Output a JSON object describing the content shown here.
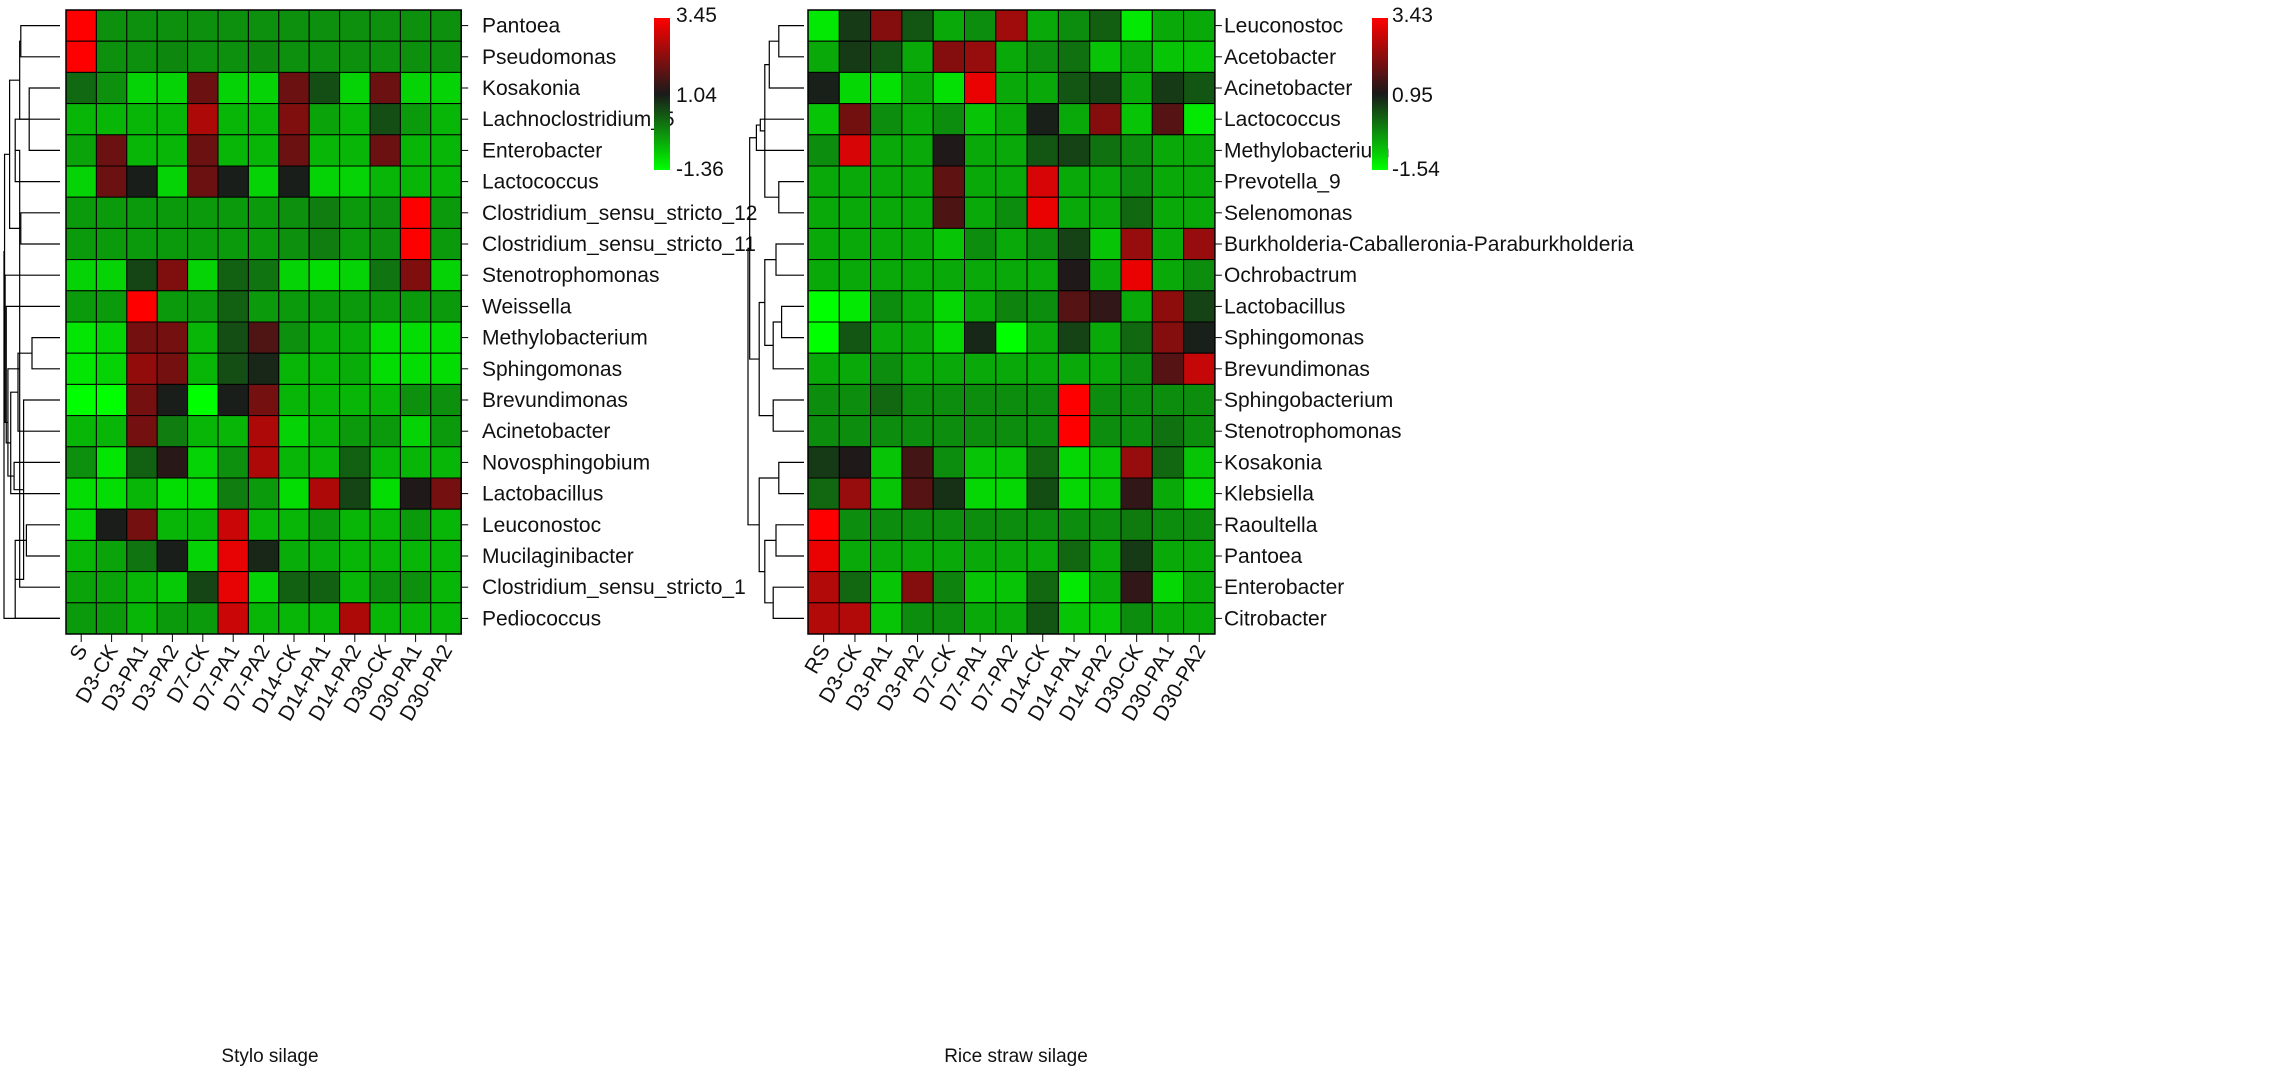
{
  "chart_data": [
    {
      "type": "heatmap",
      "title": "Stylo silage",
      "columns": [
        "S",
        "D3-CK",
        "D3-PA1",
        "D3-PA2",
        "D7-CK",
        "D7-PA1",
        "D7-PA2",
        "D14-CK",
        "D14-PA1",
        "D14-PA2",
        "D30-CK",
        "D30-PA1",
        "D30-PA2"
      ],
      "rows": [
        "Pantoea",
        "Pseudomonas",
        "Kosakonia",
        "Lachnoclostridium_5",
        "Enterobacter",
        "Lactococcus",
        "Clostridium_sensu_stricto_12",
        "Clostridium_sensu_stricto_11",
        "Stenotrophomonas",
        "Weissella",
        "Methylobacterium",
        "Sphingomonas",
        "Brevundimonas",
        "Acinetobacter",
        "Novosphingobium",
        "Lactobacillus",
        "Leuconostoc",
        "Mucilaginibacter",
        "Clostridium_sensu_stricto_1",
        "Pediococcus"
      ],
      "color_scale": {
        "low": -1.36,
        "mid": 1.04,
        "high": 3.45,
        "low_label": "-1.36",
        "mid_label": "1.04",
        "high_label": "3.45",
        "low_color": "#00ff00",
        "mid_color": "#1a1a1a",
        "high_color": "#ff0000"
      },
      "values": [
        [
          3.45,
          -0.2,
          -0.2,
          -0.2,
          -0.2,
          -0.2,
          -0.2,
          -0.2,
          -0.2,
          -0.2,
          -0.2,
          -0.2,
          -0.2
        ],
        [
          3.45,
          -0.2,
          -0.2,
          -0.1,
          -0.2,
          -0.2,
          -0.1,
          -0.2,
          -0.2,
          -0.2,
          -0.2,
          -0.2,
          -0.2
        ],
        [
          0.2,
          -0.2,
          -0.9,
          -0.9,
          1.9,
          -0.9,
          -0.9,
          1.9,
          0.5,
          -0.9,
          1.9,
          -0.9,
          -0.9
        ],
        [
          -0.6,
          -0.6,
          -0.6,
          -0.6,
          2.6,
          -0.6,
          -0.6,
          2.1,
          -0.4,
          -0.6,
          0.5,
          -0.3,
          -0.6
        ],
        [
          -0.4,
          1.9,
          -0.6,
          -0.6,
          1.9,
          -0.6,
          -0.6,
          1.9,
          -0.6,
          -0.6,
          1.9,
          -0.6,
          -0.6
        ],
        [
          -0.9,
          1.9,
          1.0,
          -0.9,
          1.9,
          1.0,
          -0.9,
          1.0,
          -0.9,
          -0.9,
          -0.6,
          -0.6,
          -0.6
        ],
        [
          -0.3,
          -0.3,
          -0.3,
          -0.3,
          -0.3,
          -0.3,
          -0.3,
          -0.2,
          0.0,
          -0.3,
          -0.2,
          3.45,
          -0.3
        ],
        [
          -0.3,
          -0.3,
          -0.3,
          -0.3,
          -0.3,
          -0.3,
          -0.3,
          -0.2,
          0.0,
          -0.3,
          -0.2,
          3.45,
          -0.3
        ],
        [
          -0.9,
          -0.9,
          0.6,
          2.1,
          -0.9,
          0.3,
          0.1,
          -0.9,
          -1.0,
          -0.9,
          0.1,
          2.1,
          -0.9
        ],
        [
          -0.3,
          -0.3,
          3.45,
          -0.3,
          -0.3,
          0.3,
          -0.3,
          -0.3,
          -0.3,
          -0.3,
          -0.3,
          -0.3,
          -0.3
        ],
        [
          -1.1,
          -0.9,
          2.0,
          2.0,
          -0.6,
          0.5,
          1.6,
          -0.2,
          -0.5,
          -0.5,
          -1.0,
          -1.0,
          -1.0
        ],
        [
          -1.1,
          -0.9,
          2.3,
          2.0,
          -0.6,
          0.5,
          0.9,
          -0.6,
          -0.6,
          -0.5,
          -1.0,
          -1.0,
          -1.0
        ],
        [
          -1.36,
          -1.36,
          2.0,
          1.0,
          -1.36,
          1.0,
          2.0,
          -0.6,
          -0.6,
          -0.6,
          -0.6,
          -0.2,
          -0.2
        ],
        [
          -0.6,
          -0.6,
          2.0,
          0.0,
          -0.6,
          -0.6,
          2.6,
          -0.9,
          -0.6,
          -0.3,
          -0.3,
          -0.9,
          -0.3
        ],
        [
          -0.2,
          -1.1,
          0.3,
          1.2,
          -0.9,
          -0.2,
          2.6,
          -0.6,
          -0.6,
          0.3,
          -0.6,
          -0.6,
          -0.6
        ],
        [
          -1.0,
          -1.0,
          -0.6,
          -1.0,
          -1.0,
          0.0,
          -0.3,
          -1.0,
          2.6,
          0.6,
          -1.0,
          1.1,
          2.0
        ],
        [
          -0.9,
          1.0,
          2.0,
          -0.6,
          -0.6,
          2.9,
          -0.6,
          -0.6,
          -0.3,
          -0.6,
          -0.6,
          -0.3,
          -0.6
        ],
        [
          -0.6,
          -0.4,
          0.1,
          1.0,
          -0.9,
          3.2,
          0.9,
          -0.5,
          -0.5,
          -0.6,
          -0.6,
          -0.6,
          -0.6
        ],
        [
          -0.4,
          -0.4,
          -0.6,
          -0.8,
          0.6,
          3.2,
          -0.9,
          0.3,
          0.3,
          -0.6,
          -0.2,
          -0.2,
          -0.6
        ],
        [
          -0.3,
          -0.3,
          -0.6,
          -0.3,
          -0.3,
          2.9,
          -0.6,
          -0.6,
          -0.6,
          2.6,
          -0.6,
          -0.6,
          -0.6
        ]
      ],
      "dendrogram": {
        "height": 1,
        "merges": [
          [
            0,
            1,
            0.7
          ],
          [
            6,
            7,
            0.7
          ],
          [
            2,
            4,
            0.55
          ],
          [
            20,
            3,
            0.72
          ],
          [
            22,
            5,
            0.8
          ],
          [
            16,
            17,
            0.6
          ],
          [
            24,
            18,
            0.72
          ],
          [
            25,
            19,
            0.8
          ],
          [
            10,
            11,
            0.5
          ],
          [
            27,
            12,
            0.65
          ],
          [
            28,
            13,
            0.75
          ],
          [
            29,
            14,
            0.82
          ],
          [
            30,
            15,
            0.88
          ],
          [
            31,
            26,
            0.93
          ],
          [
            32,
            9,
            0.96
          ],
          [
            33,
            8,
            0.98
          ],
          [
            21,
            23,
            0.9
          ],
          [
            35,
            36,
            0.99
          ],
          [
            19,
            37,
            1.0
          ]
        ]
      }
    },
    {
      "type": "heatmap",
      "title": "Rice straw silage",
      "columns": [
        "RS",
        "D3-CK",
        "D3-PA1",
        "D3-PA2",
        "D7-CK",
        "D7-PA1",
        "D7-PA2",
        "D14-CK",
        "D14-PA1",
        "D14-PA2",
        "D30-CK",
        "D30-PA1",
        "D30-PA2"
      ],
      "rows": [
        "Leuconostoc",
        "Acetobacter",
        "Acinetobacter",
        "Lactococcus",
        "Methylobacterium",
        "Prevotella_9",
        "Selenomonas",
        "Burkholderia-Caballeronia-Paraburkholderia",
        "Ochrobactrum",
        "Lactobacillus",
        "Sphingomonas",
        "Brevundimonas",
        "Sphingobacterium",
        "Stenotrophomonas",
        "Kosakonia",
        "Klebsiella",
        "Raoultella",
        "Pantoea",
        "Enterobacter",
        "Citrobacter"
      ],
      "color_scale": {
        "low": -1.54,
        "mid": 0.95,
        "high": 3.43,
        "low_label": "-1.54",
        "mid_label": "0.95",
        "high_label": "3.43",
        "low_color": "#00ff00",
        "mid_color": "#1a1a1a",
        "high_color": "#ff0000"
      },
      "values": [
        [
          -1.3,
          0.6,
          2.1,
          0.3,
          -0.6,
          -0.3,
          2.4,
          -0.6,
          -0.3,
          0.2,
          -1.3,
          -0.6,
          -0.6
        ],
        [
          -0.6,
          0.6,
          0.3,
          -0.6,
          2.1,
          2.3,
          -0.6,
          -0.3,
          0.0,
          -0.9,
          -0.6,
          -0.9,
          -0.9
        ],
        [
          0.9,
          -1.1,
          -1.2,
          -0.6,
          -1.2,
          3.2,
          -0.6,
          -0.6,
          0.3,
          0.5,
          -0.6,
          0.6,
          0.3
        ],
        [
          -0.9,
          1.9,
          -0.3,
          -0.6,
          -0.3,
          -0.9,
          -0.6,
          0.9,
          -0.6,
          2.1,
          -0.9,
          1.6,
          -1.3
        ],
        [
          -0.3,
          3.0,
          -0.6,
          -0.6,
          1.0,
          -0.6,
          -0.6,
          0.3,
          0.5,
          0.0,
          -0.3,
          -0.6,
          -0.6
        ],
        [
          -0.6,
          -0.6,
          -0.6,
          -0.6,
          1.7,
          -0.6,
          -0.6,
          3.0,
          -0.6,
          -0.6,
          -0.3,
          -0.6,
          -0.6
        ],
        [
          -0.6,
          -0.6,
          -0.6,
          -0.6,
          1.5,
          -0.6,
          -0.3,
          3.2,
          -0.6,
          -0.6,
          0.1,
          -0.6,
          -0.6
        ],
        [
          -0.6,
          -0.6,
          -0.6,
          -0.6,
          -0.9,
          -0.3,
          -0.6,
          -0.3,
          0.5,
          -0.9,
          2.3,
          -0.6,
          2.3
        ],
        [
          -0.6,
          -0.6,
          -0.6,
          -0.6,
          -0.6,
          -0.6,
          -0.6,
          -0.6,
          1.0,
          -0.6,
          3.2,
          -0.6,
          -0.3
        ],
        [
          -1.54,
          -1.3,
          -0.3,
          -0.6,
          -1.1,
          -0.6,
          -0.2,
          -0.3,
          1.6,
          1.2,
          -0.6,
          2.2,
          0.5
        ],
        [
          -1.54,
          0.3,
          -0.6,
          -0.6,
          -1.1,
          0.8,
          -1.54,
          -0.6,
          0.5,
          -0.6,
          0.1,
          2.1,
          0.9
        ],
        [
          -0.6,
          -0.6,
          -0.3,
          -0.6,
          -0.6,
          -0.6,
          -0.6,
          -0.6,
          -0.6,
          -0.6,
          -0.3,
          1.6,
          2.8
        ],
        [
          -0.3,
          -0.3,
          0.1,
          -0.3,
          -0.3,
          -0.3,
          -0.3,
          -0.3,
          3.43,
          -0.3,
          -0.3,
          -0.3,
          -0.3
        ],
        [
          -0.3,
          -0.3,
          -0.3,
          -0.3,
          -0.3,
          -0.3,
          -0.3,
          -0.3,
          3.43,
          -0.3,
          -0.3,
          0.0,
          -0.3
        ],
        [
          0.6,
          1.0,
          -0.9,
          1.4,
          -0.3,
          -0.9,
          -0.9,
          0.1,
          -1.1,
          -0.9,
          2.3,
          0.1,
          -0.9
        ],
        [
          0.1,
          2.3,
          -0.9,
          1.6,
          0.7,
          -1.1,
          -1.1,
          0.4,
          -1.1,
          -0.9,
          1.2,
          -0.6,
          -1.1
        ],
        [
          3.43,
          -0.3,
          -0.3,
          -0.3,
          -0.3,
          -0.3,
          -0.3,
          -0.3,
          -0.3,
          -0.3,
          -0.1,
          -0.3,
          -0.3
        ],
        [
          3.2,
          -0.6,
          -0.6,
          -0.6,
          -0.6,
          -0.6,
          -0.6,
          -0.6,
          0.1,
          -0.6,
          0.6,
          -0.6,
          -0.6
        ],
        [
          2.6,
          0.1,
          -0.9,
          2.1,
          -0.2,
          -0.9,
          -0.9,
          0.1,
          -1.3,
          -0.6,
          1.2,
          -1.1,
          -0.6
        ],
        [
          2.6,
          2.6,
          -0.9,
          -0.3,
          -0.3,
          -0.6,
          -0.6,
          0.3,
          -0.9,
          -0.9,
          -0.3,
          -0.6,
          -0.6
        ]
      ],
      "dendrogram": {
        "height": 1,
        "merges": [
          [
            0,
            1,
            0.45
          ],
          [
            20,
            2,
            0.62
          ],
          [
            5,
            6,
            0.45
          ],
          [
            21,
            22,
            0.7
          ],
          [
            23,
            3,
            0.78
          ],
          [
            24,
            4,
            0.85
          ],
          [
            7,
            8,
            0.5
          ],
          [
            9,
            10,
            0.4
          ],
          [
            27,
            11,
            0.55
          ],
          [
            26,
            28,
            0.7
          ],
          [
            12,
            13,
            0.55
          ],
          [
            29,
            30,
            0.8
          ],
          [
            25,
            31,
            0.97
          ],
          [
            14,
            15,
            0.45
          ],
          [
            16,
            17,
            0.5
          ],
          [
            18,
            19,
            0.55
          ],
          [
            34,
            35,
            0.7
          ],
          [
            33,
            36,
            0.8
          ],
          [
            32,
            37,
            1.0
          ]
        ]
      }
    }
  ]
}
